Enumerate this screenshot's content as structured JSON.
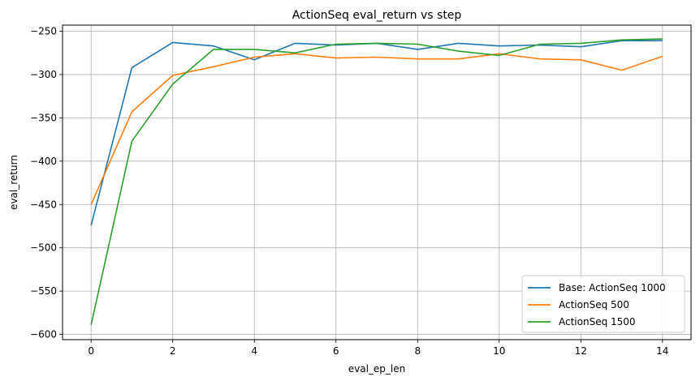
{
  "chart_data": {
    "type": "line",
    "title": "ActionSeq eval_return vs step",
    "xlabel": "eval_ep_len",
    "ylabel": "eval_return",
    "xlim": [
      -0.7,
      14.7
    ],
    "ylim": [
      -606,
      -243
    ],
    "xticks": [
      0,
      2,
      4,
      6,
      8,
      10,
      12,
      14
    ],
    "yticks": [
      -600,
      -550,
      -500,
      -450,
      -400,
      -350,
      -300,
      -250
    ],
    "grid": true,
    "legend_position": "lower-right",
    "x": [
      0,
      1,
      2,
      3,
      4,
      5,
      6,
      7,
      8,
      9,
      10,
      11,
      12,
      13,
      14
    ],
    "series": [
      {
        "name": "Base: ActionSeq 1000",
        "color": "#1f77b4",
        "values": [
          -474,
          -292,
          -263,
          -267,
          -283,
          -264,
          -266,
          -264,
          -271,
          -264,
          -267,
          -266,
          -268,
          -261,
          -261
        ]
      },
      {
        "name": "ActionSeq 500",
        "color": "#ff7f0e",
        "values": [
          -450,
          -343,
          -301,
          -291,
          -280,
          -276,
          -281,
          -280,
          -282,
          -282,
          -276,
          -282,
          -283,
          -295,
          -279
        ]
      },
      {
        "name": "ActionSeq 1500",
        "color": "#2ca02c",
        "values": [
          -589,
          -377,
          -311,
          -271,
          -271,
          -275,
          -265,
          -264,
          -265,
          -273,
          -278,
          -265,
          -264,
          -260,
          -259
        ]
      }
    ]
  }
}
